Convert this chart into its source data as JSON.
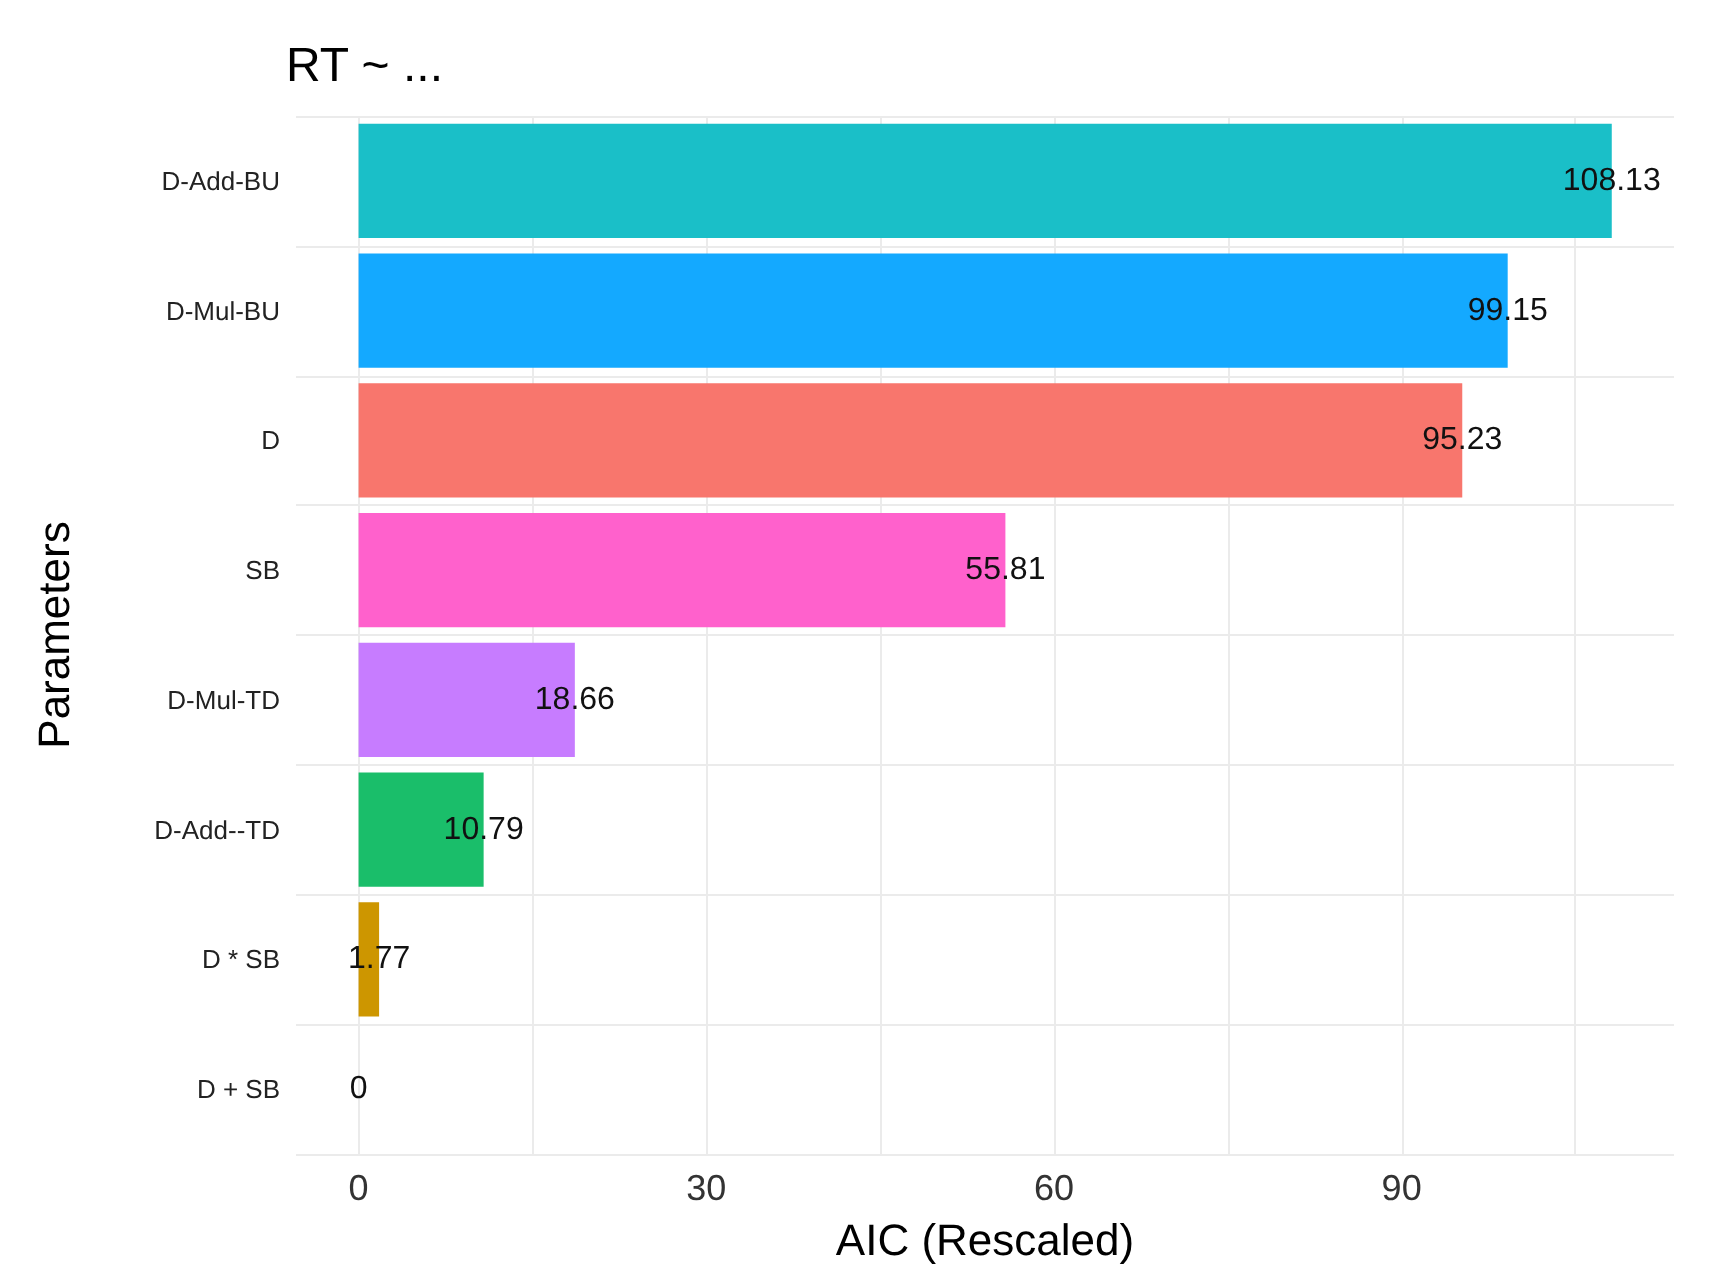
{
  "chart_data": {
    "type": "bar",
    "orientation": "horizontal",
    "title": "RT ~ ...",
    "xlabel": "AIC (Rescaled)",
    "ylabel": "Parameters",
    "categories": [
      "D-Add-BU",
      "D-Mul-BU",
      "D",
      "SB",
      "D-Mul-TD",
      "D-Add--TD",
      "D * SB",
      "D + SB"
    ],
    "values": [
      108.13,
      99.15,
      95.23,
      55.81,
      18.66,
      10.79,
      1.77,
      0
    ],
    "colors": [
      "#1abfc8",
      "#14a9ff",
      "#f8766d",
      "#ff61cc",
      "#c77cff",
      "#1abe6a",
      "#cd9600",
      "#7cae00"
    ],
    "xlim": [
      -5.4,
      113.5
    ],
    "xticks": [
      0,
      {
        "value": 15,
        "label": null
      },
      30,
      {
        "value": 45,
        "label": null
      },
      60,
      {
        "value": 75,
        "label": null
      },
      90,
      {
        "value": 105,
        "label": null
      }
    ],
    "data_labels": true,
    "grid": true
  }
}
